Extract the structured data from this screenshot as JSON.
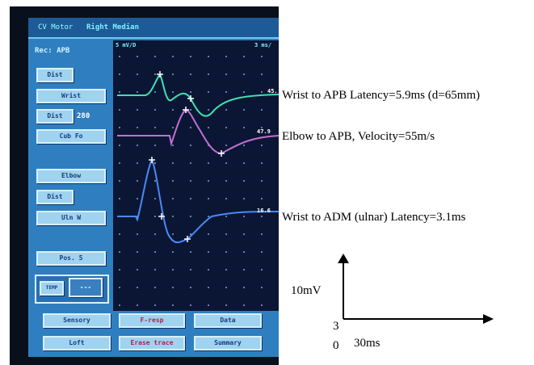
{
  "screen": {
    "header": {
      "mode": "CV Motor",
      "nerve": "Right Median"
    },
    "recording": "Rec: APB",
    "sensitivity": "5 mV/D",
    "sweep": "3 ms/",
    "side_buttons": [
      "Dist",
      "Wrist",
      "Dist",
      "Cub Fo",
      "Elbow",
      "Dist",
      "Uln W",
      "Pos. 5"
    ],
    "distance": "280",
    "temp_label": "TEMP",
    "temp_value": "---",
    "trace_values": [
      "45.",
      "47.9",
      "16.6"
    ],
    "bottom_buttons": [
      "Sensory",
      "F-resp",
      "Data",
      "Loft",
      "Erase trace",
      "Summary"
    ]
  },
  "annotations": {
    "trace_1": "Wrist to APB Latency=5.9ms (d=65mm)",
    "trace_2": "Elbow to APB, Velocity=55m/s",
    "trace_3": "Wrist to ADM (ulnar) Latency=3.1ms",
    "amplitude": "10mV",
    "origin_y": "3",
    "origin_x": "0",
    "time": "30ms"
  }
}
